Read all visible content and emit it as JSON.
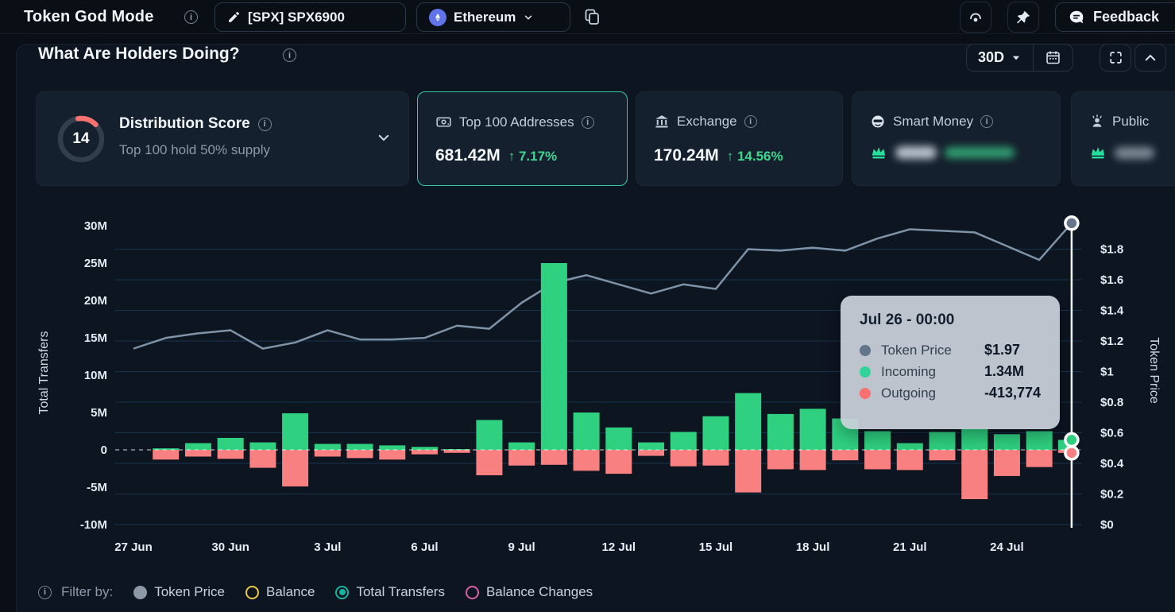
{
  "topbar": {
    "app_title": "Token God Mode",
    "token_button": "[SPX] SPX6900",
    "chain_button": "Ethereum",
    "feedback_button": "Feedback"
  },
  "header": {
    "title": "What Are Holders Doing?",
    "range_button": "30D"
  },
  "cards": {
    "distribution": {
      "score": "14",
      "title": "Distribution Score",
      "subtitle": "Top 100 hold 50% supply",
      "gauge_color": "#f87171",
      "gauge_pct": 15
    },
    "top100": {
      "title": "Top 100 Addresses",
      "value": "681.42M",
      "change": "↑ 7.17%",
      "selected": true
    },
    "exchange": {
      "title": "Exchange",
      "value": "170.24M",
      "change": "↑ 14.56%"
    },
    "smart_money": {
      "title": "Smart Money",
      "value_blurred": true
    },
    "public": {
      "title": "Public",
      "value_blurred": true
    }
  },
  "tooltip": {
    "title": "Jul 26 - 00:00",
    "rows": [
      {
        "label": "Token Price",
        "value": "$1.97",
        "color": "#64748b"
      },
      {
        "label": "Incoming",
        "value": "1.34M",
        "color": "#34d399"
      },
      {
        "label": "Outgoing",
        "value": "-413,774",
        "color": "#f87171"
      }
    ]
  },
  "legend": {
    "caption": "Filter by:",
    "items": [
      {
        "label": "Token Price",
        "color": "#8e99a8",
        "style": "solid",
        "selected": false
      },
      {
        "label": "Balance",
        "color": "#e8c84a",
        "style": "ring",
        "selected": false
      },
      {
        "label": "Total Transfers",
        "color": "#17b3a0",
        "style": "ring",
        "selected": true
      },
      {
        "label": "Balance Changes",
        "color": "#d85fa8",
        "style": "ring",
        "selected": false
      }
    ]
  },
  "chart_data": {
    "type": "combo-bar-line",
    "x": [
      "27 Jun",
      "28 Jun",
      "29 Jun",
      "30 Jun",
      "1 Jul",
      "2 Jul",
      "3 Jul",
      "4 Jul",
      "5 Jul",
      "6 Jul",
      "7 Jul",
      "8 Jul",
      "9 Jul",
      "10 Jul",
      "11 Jul",
      "12 Jul",
      "13 Jul",
      "14 Jul",
      "15 Jul",
      "16 Jul",
      "17 Jul",
      "18 Jul",
      "19 Jul",
      "20 Jul",
      "21 Jul",
      "22 Jul",
      "23 Jul",
      "24 Jul",
      "25 Jul",
      "26 Jul"
    ],
    "x_tick_labels": [
      "27 Jun",
      "30 Jun",
      "3 Jul",
      "6 Jul",
      "9 Jul",
      "12 Jul",
      "15 Jul",
      "18 Jul",
      "21 Jul",
      "24 Jul"
    ],
    "series": [
      {
        "name": "Incoming",
        "type": "bar",
        "axis": "left",
        "color": "#2fd181",
        "values_m": [
          0,
          0.2,
          0.9,
          1.6,
          1.0,
          4.9,
          0.8,
          0.8,
          0.6,
          0.4,
          0.1,
          4.0,
          1.0,
          25.0,
          5.0,
          3.0,
          1.0,
          2.4,
          4.5,
          7.6,
          4.8,
          5.5,
          4.2,
          2.5,
          0.9,
          2.4,
          2.8,
          2.1,
          2.5,
          1.34
        ]
      },
      {
        "name": "Outgoing",
        "type": "bar",
        "axis": "left",
        "color": "#f98080",
        "values_m": [
          0,
          -1.3,
          -0.9,
          -1.2,
          -2.4,
          -4.9,
          -0.9,
          -1.1,
          -1.3,
          -0.6,
          -0.4,
          -3.4,
          -2.1,
          -2.0,
          -2.8,
          -3.2,
          -0.8,
          -2.2,
          -2.1,
          -5.7,
          -2.6,
          -2.7,
          -1.4,
          -2.6,
          -2.7,
          -1.4,
          -6.6,
          -3.5,
          -2.3,
          -0.41
        ]
      },
      {
        "name": "Token Price",
        "type": "line",
        "axis": "right",
        "color": "#7f93a8",
        "values_usd": [
          1.15,
          1.22,
          1.25,
          1.27,
          1.15,
          1.19,
          1.27,
          1.21,
          1.21,
          1.22,
          1.3,
          1.28,
          1.45,
          1.58,
          1.63,
          1.57,
          1.51,
          1.57,
          1.54,
          1.8,
          1.79,
          1.81,
          1.79,
          1.87,
          1.93,
          1.92,
          1.91,
          1.82,
          1.73,
          1.97
        ]
      }
    ],
    "left_axis": {
      "label": "Total Transfers",
      "ticks": [
        "30M",
        "25M",
        "20M",
        "15M",
        "10M",
        "5M",
        "0",
        "-5M",
        "-10M"
      ],
      "tick_values_m": [
        30,
        25,
        20,
        15,
        10,
        5,
        0,
        -5,
        -10
      ]
    },
    "right_axis": {
      "label": "Token Price",
      "ticks": [
        "$1.8",
        "$1.6",
        "$1.4",
        "$1.2",
        "$1",
        "$0.8",
        "$0.6",
        "$0.4",
        "$0.2",
        "$0"
      ],
      "tick_values_usd": [
        1.8,
        1.6,
        1.4,
        1.2,
        1,
        0.8,
        0.6,
        0.4,
        0.2,
        0
      ]
    },
    "grid": true,
    "zero_line_dashed": true,
    "crosshair": {
      "x_index": 29,
      "price_marker_usd": 1.97,
      "incoming_marker_m": 1.34,
      "outgoing_marker_m": -0.41
    }
  }
}
